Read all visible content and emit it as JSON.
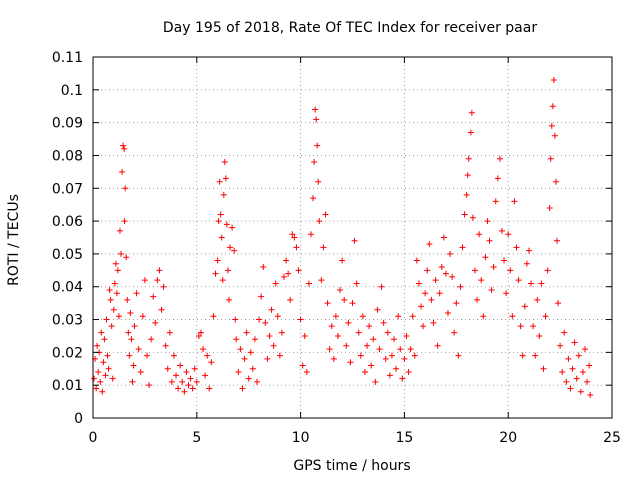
{
  "chart_data": {
    "type": "scatter",
    "title": "Day 195 of 2018, Rate Of TEC Index for receiver paar",
    "xlabel": "GPS time / hours",
    "ylabel": "ROTI / TECUs",
    "xlim": [
      0,
      25
    ],
    "ylim": [
      0,
      0.11
    ],
    "xticks": [
      0,
      5,
      10,
      15,
      20,
      25
    ],
    "xtick_labels": [
      "0",
      "5",
      "10",
      "15",
      "20",
      "25"
    ],
    "yticks": [
      0,
      0.01,
      0.02,
      0.03,
      0.04,
      0.05,
      0.06,
      0.07,
      0.08,
      0.09,
      0.1,
      0.11
    ],
    "ytick_labels": [
      "0",
      "0.01",
      "0.02",
      "0.03",
      "0.04",
      "0.05",
      "0.06",
      "0.07",
      "0.08",
      "0.09",
      "0.1",
      "0.11"
    ],
    "grid": true,
    "marker": "plus",
    "color": "#ff0000",
    "series": [
      {
        "points": [
          [
            0.05,
            0.012
          ],
          [
            0.1,
            0.018
          ],
          [
            0.15,
            0.009
          ],
          [
            0.2,
            0.022
          ],
          [
            0.25,
            0.014
          ],
          [
            0.3,
            0.02
          ],
          [
            0.35,
            0.011
          ],
          [
            0.4,
            0.026
          ],
          [
            0.45,
            0.008
          ],
          [
            0.5,
            0.017
          ],
          [
            0.55,
            0.024
          ],
          [
            0.6,
            0.013
          ],
          [
            0.65,
            0.03
          ],
          [
            0.7,
            0.019
          ],
          [
            0.75,
            0.015
          ],
          [
            0.8,
            0.039
          ],
          [
            0.85,
            0.036
          ],
          [
            0.9,
            0.028
          ],
          [
            0.95,
            0.012
          ],
          [
            1.0,
            0.033
          ],
          [
            1.05,
            0.041
          ],
          [
            1.1,
            0.047
          ],
          [
            1.15,
            0.038
          ],
          [
            1.2,
            0.045
          ],
          [
            1.25,
            0.031
          ],
          [
            1.3,
            0.057
          ],
          [
            1.35,
            0.05
          ],
          [
            1.4,
            0.075
          ],
          [
            1.45,
            0.083
          ],
          [
            1.5,
            0.082
          ],
          [
            1.52,
            0.06
          ],
          [
            1.55,
            0.07
          ],
          [
            1.6,
            0.049
          ],
          [
            1.65,
            0.036
          ],
          [
            1.7,
            0.026
          ],
          [
            1.75,
            0.019
          ],
          [
            1.8,
            0.032
          ],
          [
            1.85,
            0.024
          ],
          [
            1.9,
            0.011
          ],
          [
            1.95,
            0.016
          ],
          [
            2.0,
            0.028
          ],
          [
            2.1,
            0.038
          ],
          [
            2.2,
            0.021
          ],
          [
            2.3,
            0.014
          ],
          [
            2.4,
            0.031
          ],
          [
            2.5,
            0.042
          ],
          [
            2.6,
            0.019
          ],
          [
            2.7,
            0.01
          ],
          [
            2.8,
            0.024
          ],
          [
            2.9,
            0.037
          ],
          [
            3.0,
            0.029
          ],
          [
            3.1,
            0.042
          ],
          [
            3.2,
            0.045
          ],
          [
            3.3,
            0.033
          ],
          [
            3.4,
            0.04
          ],
          [
            3.5,
            0.022
          ],
          [
            3.6,
            0.015
          ],
          [
            3.7,
            0.026
          ],
          [
            3.8,
            0.011
          ],
          [
            3.9,
            0.019
          ],
          [
            4.0,
            0.013
          ],
          [
            4.1,
            0.009
          ],
          [
            4.2,
            0.016
          ],
          [
            4.3,
            0.011
          ],
          [
            4.4,
            0.008
          ],
          [
            4.5,
            0.014
          ],
          [
            4.6,
            0.01
          ],
          [
            4.7,
            0.012
          ],
          [
            4.8,
            0.009
          ],
          [
            4.9,
            0.015
          ],
          [
            5.0,
            0.011
          ],
          [
            5.1,
            0.025
          ],
          [
            5.2,
            0.026
          ],
          [
            5.3,
            0.021
          ],
          [
            5.4,
            0.013
          ],
          [
            5.5,
            0.019
          ],
          [
            5.6,
            0.009
          ],
          [
            5.7,
            0.017
          ],
          [
            5.8,
            0.031
          ],
          [
            5.9,
            0.044
          ],
          [
            6.0,
            0.048
          ],
          [
            6.05,
            0.06
          ],
          [
            6.1,
            0.072
          ],
          [
            6.15,
            0.062
          ],
          [
            6.2,
            0.055
          ],
          [
            6.25,
            0.042
          ],
          [
            6.3,
            0.068
          ],
          [
            6.35,
            0.078
          ],
          [
            6.4,
            0.073
          ],
          [
            6.45,
            0.059
          ],
          [
            6.5,
            0.045
          ],
          [
            6.55,
            0.036
          ],
          [
            6.6,
            0.052
          ],
          [
            6.7,
            0.058
          ],
          [
            6.8,
            0.051
          ],
          [
            6.85,
            0.03
          ],
          [
            6.9,
            0.024
          ],
          [
            7.0,
            0.014
          ],
          [
            7.1,
            0.021
          ],
          [
            7.2,
            0.009
          ],
          [
            7.3,
            0.018
          ],
          [
            7.4,
            0.026
          ],
          [
            7.5,
            0.012
          ],
          [
            7.6,
            0.02
          ],
          [
            7.7,
            0.015
          ],
          [
            7.8,
            0.024
          ],
          [
            7.9,
            0.011
          ],
          [
            8.0,
            0.03
          ],
          [
            8.1,
            0.037
          ],
          [
            8.2,
            0.046
          ],
          [
            8.3,
            0.029
          ],
          [
            8.4,
            0.018
          ],
          [
            8.5,
            0.025
          ],
          [
            8.6,
            0.033
          ],
          [
            8.7,
            0.022
          ],
          [
            8.8,
            0.041
          ],
          [
            8.9,
            0.031
          ],
          [
            9.0,
            0.019
          ],
          [
            9.1,
            0.026
          ],
          [
            9.2,
            0.043
          ],
          [
            9.3,
            0.048
          ],
          [
            9.4,
            0.044
          ],
          [
            9.5,
            0.036
          ],
          [
            9.6,
            0.056
          ],
          [
            9.7,
            0.055
          ],
          [
            9.8,
            0.052
          ],
          [
            9.9,
            0.045
          ],
          [
            10.0,
            0.03
          ],
          [
            10.1,
            0.016
          ],
          [
            10.2,
            0.025
          ],
          [
            10.3,
            0.014
          ],
          [
            10.4,
            0.041
          ],
          [
            10.5,
            0.056
          ],
          [
            10.6,
            0.067
          ],
          [
            10.65,
            0.078
          ],
          [
            10.7,
            0.094
          ],
          [
            10.75,
            0.091
          ],
          [
            10.8,
            0.083
          ],
          [
            10.85,
            0.072
          ],
          [
            10.9,
            0.06
          ],
          [
            11.0,
            0.042
          ],
          [
            11.1,
            0.052
          ],
          [
            11.2,
            0.062
          ],
          [
            11.3,
            0.035
          ],
          [
            11.4,
            0.021
          ],
          [
            11.5,
            0.028
          ],
          [
            11.6,
            0.018
          ],
          [
            11.7,
            0.031
          ],
          [
            11.8,
            0.025
          ],
          [
            11.9,
            0.039
          ],
          [
            12.0,
            0.048
          ],
          [
            12.1,
            0.036
          ],
          [
            12.2,
            0.022
          ],
          [
            12.3,
            0.029
          ],
          [
            12.4,
            0.017
          ],
          [
            12.5,
            0.035
          ],
          [
            12.6,
            0.054
          ],
          [
            12.7,
            0.041
          ],
          [
            12.8,
            0.026
          ],
          [
            12.9,
            0.019
          ],
          [
            13.0,
            0.031
          ],
          [
            13.1,
            0.014
          ],
          [
            13.2,
            0.022
          ],
          [
            13.3,
            0.028
          ],
          [
            13.4,
            0.016
          ],
          [
            13.5,
            0.024
          ],
          [
            13.6,
            0.011
          ],
          [
            13.7,
            0.033
          ],
          [
            13.8,
            0.021
          ],
          [
            13.9,
            0.04
          ],
          [
            14.0,
            0.029
          ],
          [
            14.1,
            0.018
          ],
          [
            14.2,
            0.026
          ],
          [
            14.3,
            0.013
          ],
          [
            14.4,
            0.019
          ],
          [
            14.5,
            0.024
          ],
          [
            14.6,
            0.015
          ],
          [
            14.7,
            0.031
          ],
          [
            14.8,
            0.021
          ],
          [
            14.9,
            0.012
          ],
          [
            15.0,
            0.018
          ],
          [
            15.1,
            0.025
          ],
          [
            15.2,
            0.014
          ],
          [
            15.3,
            0.021
          ],
          [
            15.4,
            0.031
          ],
          [
            15.5,
            0.019
          ],
          [
            15.6,
            0.048
          ],
          [
            15.7,
            0.041
          ],
          [
            15.8,
            0.034
          ],
          [
            15.9,
            0.028
          ],
          [
            16.0,
            0.038
          ],
          [
            16.1,
            0.045
          ],
          [
            16.2,
            0.053
          ],
          [
            16.3,
            0.036
          ],
          [
            16.4,
            0.029
          ],
          [
            16.5,
            0.042
          ],
          [
            16.6,
            0.022
          ],
          [
            16.7,
            0.038
          ],
          [
            16.8,
            0.046
          ],
          [
            16.9,
            0.055
          ],
          [
            17.0,
            0.044
          ],
          [
            17.1,
            0.032
          ],
          [
            17.2,
            0.05
          ],
          [
            17.3,
            0.043
          ],
          [
            17.4,
            0.026
          ],
          [
            17.5,
            0.035
          ],
          [
            17.6,
            0.019
          ],
          [
            17.7,
            0.04
          ],
          [
            17.8,
            0.052
          ],
          [
            17.9,
            0.062
          ],
          [
            18.0,
            0.068
          ],
          [
            18.05,
            0.074
          ],
          [
            18.1,
            0.079
          ],
          [
            18.2,
            0.087
          ],
          [
            18.25,
            0.093
          ],
          [
            18.3,
            0.061
          ],
          [
            18.4,
            0.045
          ],
          [
            18.5,
            0.036
          ],
          [
            18.6,
            0.056
          ],
          [
            18.7,
            0.042
          ],
          [
            18.8,
            0.031
          ],
          [
            18.9,
            0.049
          ],
          [
            19.0,
            0.06
          ],
          [
            19.1,
            0.054
          ],
          [
            19.2,
            0.039
          ],
          [
            19.3,
            0.046
          ],
          [
            19.4,
            0.066
          ],
          [
            19.5,
            0.073
          ],
          [
            19.6,
            0.079
          ],
          [
            19.7,
            0.057
          ],
          [
            19.8,
            0.048
          ],
          [
            19.9,
            0.038
          ],
          [
            20.0,
            0.056
          ],
          [
            20.1,
            0.045
          ],
          [
            20.2,
            0.031
          ],
          [
            20.3,
            0.066
          ],
          [
            20.4,
            0.052
          ],
          [
            20.5,
            0.042
          ],
          [
            20.6,
            0.028
          ],
          [
            20.7,
            0.019
          ],
          [
            20.8,
            0.034
          ],
          [
            20.9,
            0.047
          ],
          [
            21.0,
            0.051
          ],
          [
            21.1,
            0.041
          ],
          [
            21.2,
            0.028
          ],
          [
            21.3,
            0.019
          ],
          [
            21.4,
            0.036
          ],
          [
            21.5,
            0.025
          ],
          [
            21.6,
            0.041
          ],
          [
            21.7,
            0.015
          ],
          [
            21.8,
            0.031
          ],
          [
            21.9,
            0.045
          ],
          [
            22.0,
            0.064
          ],
          [
            22.05,
            0.079
          ],
          [
            22.1,
            0.089
          ],
          [
            22.15,
            0.095
          ],
          [
            22.2,
            0.103
          ],
          [
            22.25,
            0.086
          ],
          [
            22.3,
            0.072
          ],
          [
            22.35,
            0.054
          ],
          [
            22.4,
            0.035
          ],
          [
            22.5,
            0.022
          ],
          [
            22.6,
            0.014
          ],
          [
            22.7,
            0.026
          ],
          [
            22.8,
            0.011
          ],
          [
            22.9,
            0.018
          ],
          [
            23.0,
            0.009
          ],
          [
            23.1,
            0.015
          ],
          [
            23.2,
            0.023
          ],
          [
            23.3,
            0.012
          ],
          [
            23.4,
            0.019
          ],
          [
            23.5,
            0.008
          ],
          [
            23.6,
            0.014
          ],
          [
            23.7,
            0.021
          ],
          [
            23.8,
            0.011
          ],
          [
            23.9,
            0.016
          ],
          [
            23.95,
            0.007
          ]
        ]
      }
    ]
  }
}
